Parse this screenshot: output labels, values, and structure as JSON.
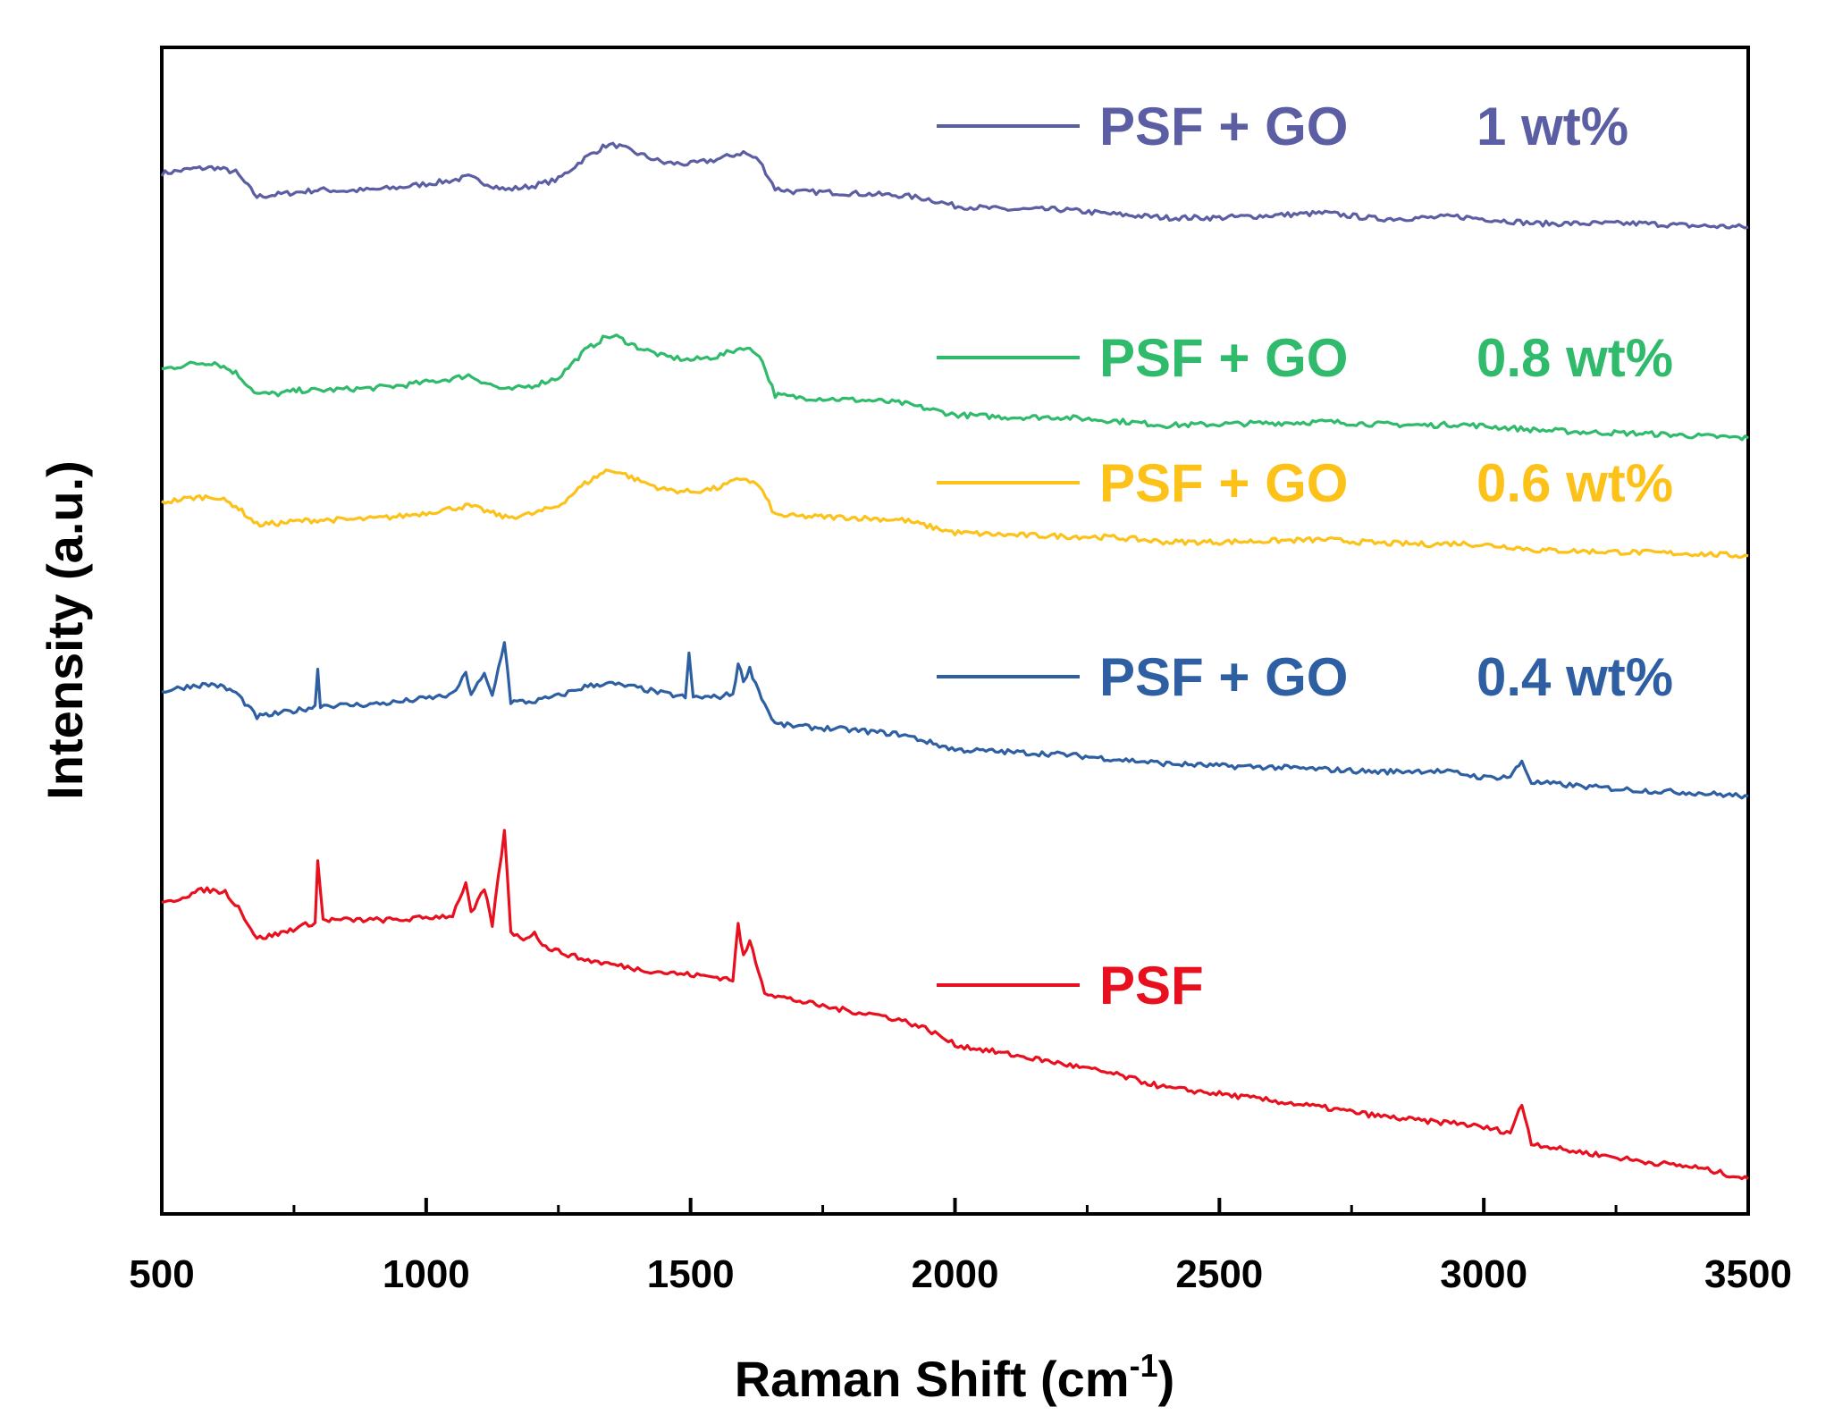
{
  "chart_data": {
    "type": "line",
    "title": "",
    "xlabel": "Raman Shift (cm",
    "xlabel_superscript": "-1",
    "xlabel_suffix": ")",
    "ylabel": "Intensity (a.u.)",
    "xlim": [
      500,
      3500
    ],
    "ylim": [
      0,
      10
    ],
    "x_ticks": [
      500,
      1000,
      1500,
      2000,
      2500,
      3000,
      3500
    ],
    "x_tick_labels": [
      "500",
      "1000",
      "1500",
      "2000",
      "2500",
      "3000",
      "3500"
    ],
    "x_minor_ticks": [
      750,
      1250,
      1750,
      2250,
      2750,
      3250
    ],
    "y_ticks_shown": false,
    "grid": false,
    "legend_position": "right, beside each curve",
    "series": [
      {
        "name": "PSF  + GO    1 wt%",
        "legend_parts": [
          "PSF  + GO",
          "1 wt%"
        ],
        "color": "#5b5ea3",
        "points": [
          [
            500,
            8.92
          ],
          [
            560,
            8.96
          ],
          [
            600,
            8.97
          ],
          [
            640,
            8.93
          ],
          [
            680,
            8.72
          ],
          [
            720,
            8.74
          ],
          [
            760,
            8.76
          ],
          [
            800,
            8.78
          ],
          [
            850,
            8.77
          ],
          [
            900,
            8.78
          ],
          [
            950,
            8.8
          ],
          [
            1000,
            8.83
          ],
          [
            1050,
            8.86
          ],
          [
            1080,
            8.89
          ],
          [
            1110,
            8.84
          ],
          [
            1150,
            8.78
          ],
          [
            1200,
            8.81
          ],
          [
            1250,
            8.87
          ],
          [
            1300,
            9.05
          ],
          [
            1340,
            9.16
          ],
          [
            1360,
            9.16
          ],
          [
            1400,
            9.09
          ],
          [
            1450,
            9.01
          ],
          [
            1500,
            9.0
          ],
          [
            1550,
            9.04
          ],
          [
            1600,
            9.1
          ],
          [
            1630,
            9.03
          ],
          [
            1660,
            8.79
          ],
          [
            1700,
            8.76
          ],
          [
            1750,
            8.76
          ],
          [
            1800,
            8.75
          ],
          [
            1850,
            8.74
          ],
          [
            1900,
            8.73
          ],
          [
            1950,
            8.7
          ],
          [
            2000,
            8.64
          ],
          [
            2100,
            8.61
          ],
          [
            2200,
            8.61
          ],
          [
            2300,
            8.57
          ],
          [
            2400,
            8.54
          ],
          [
            2500,
            8.54
          ],
          [
            2600,
            8.56
          ],
          [
            2700,
            8.58
          ],
          [
            2800,
            8.53
          ],
          [
            2900,
            8.54
          ],
          [
            2950,
            8.55
          ],
          [
            3050,
            8.51
          ],
          [
            3100,
            8.49
          ],
          [
            3200,
            8.49
          ],
          [
            3300,
            8.49
          ],
          [
            3400,
            8.47
          ],
          [
            3500,
            8.46
          ]
        ]
      },
      {
        "name": "PSF  + GO    0.8 wt%",
        "legend_parts": [
          "PSF  + GO",
          "0.8 wt%"
        ],
        "color": "#2fbb6b",
        "points": [
          [
            500,
            7.24
          ],
          [
            560,
            7.29
          ],
          [
            600,
            7.3
          ],
          [
            640,
            7.21
          ],
          [
            680,
            7.03
          ],
          [
            720,
            7.03
          ],
          [
            760,
            7.06
          ],
          [
            800,
            7.06
          ],
          [
            850,
            7.07
          ],
          [
            900,
            7.08
          ],
          [
            950,
            7.1
          ],
          [
            1000,
            7.13
          ],
          [
            1050,
            7.16
          ],
          [
            1080,
            7.19
          ],
          [
            1110,
            7.13
          ],
          [
            1150,
            7.06
          ],
          [
            1200,
            7.1
          ],
          [
            1250,
            7.17
          ],
          [
            1300,
            7.4
          ],
          [
            1340,
            7.52
          ],
          [
            1360,
            7.52
          ],
          [
            1400,
            7.43
          ],
          [
            1450,
            7.35
          ],
          [
            1500,
            7.32
          ],
          [
            1550,
            7.35
          ],
          [
            1600,
            7.43
          ],
          [
            1630,
            7.37
          ],
          [
            1660,
            7.02
          ],
          [
            1700,
            7.0
          ],
          [
            1750,
            6.99
          ],
          [
            1800,
            6.98
          ],
          [
            1850,
            6.97
          ],
          [
            1900,
            6.95
          ],
          [
            2000,
            6.85
          ],
          [
            2100,
            6.83
          ],
          [
            2200,
            6.83
          ],
          [
            2300,
            6.8
          ],
          [
            2400,
            6.76
          ],
          [
            2500,
            6.77
          ],
          [
            2600,
            6.78
          ],
          [
            2700,
            6.79
          ],
          [
            2800,
            6.77
          ],
          [
            2900,
            6.76
          ],
          [
            2950,
            6.77
          ],
          [
            3100,
            6.72
          ],
          [
            3200,
            6.7
          ],
          [
            3300,
            6.69
          ],
          [
            3400,
            6.67
          ],
          [
            3500,
            6.65
          ]
        ]
      },
      {
        "name": "PSF  + GO    0.6 wt%",
        "legend_parts": [
          "PSF  + GO",
          "0.6 wt%"
        ],
        "color": "#fcc21a",
        "points": [
          [
            500,
            6.1
          ],
          [
            560,
            6.14
          ],
          [
            600,
            6.15
          ],
          [
            640,
            6.07
          ],
          [
            680,
            5.91
          ],
          [
            720,
            5.92
          ],
          [
            760,
            5.94
          ],
          [
            800,
            5.95
          ],
          [
            850,
            5.95
          ],
          [
            900,
            5.96
          ],
          [
            950,
            5.98
          ],
          [
            1000,
            6.01
          ],
          [
            1050,
            6.05
          ],
          [
            1080,
            6.07
          ],
          [
            1110,
            6.03
          ],
          [
            1150,
            5.97
          ],
          [
            1200,
            6.0
          ],
          [
            1250,
            6.07
          ],
          [
            1300,
            6.26
          ],
          [
            1340,
            6.37
          ],
          [
            1360,
            6.37
          ],
          [
            1400,
            6.29
          ],
          [
            1450,
            6.21
          ],
          [
            1500,
            6.19
          ],
          [
            1550,
            6.22
          ],
          [
            1600,
            6.31
          ],
          [
            1630,
            6.24
          ],
          [
            1660,
            5.99
          ],
          [
            1700,
            5.98
          ],
          [
            1800,
            5.97
          ],
          [
            1900,
            5.95
          ],
          [
            2000,
            5.84
          ],
          [
            2100,
            5.82
          ],
          [
            2200,
            5.81
          ],
          [
            2300,
            5.8
          ],
          [
            2400,
            5.76
          ],
          [
            2500,
            5.76
          ],
          [
            2600,
            5.77
          ],
          [
            2700,
            5.78
          ],
          [
            2800,
            5.75
          ],
          [
            2900,
            5.74
          ],
          [
            2950,
            5.75
          ],
          [
            3050,
            5.72
          ],
          [
            3100,
            5.69
          ],
          [
            3200,
            5.68
          ],
          [
            3300,
            5.67
          ],
          [
            3400,
            5.66
          ],
          [
            3500,
            5.64
          ]
        ]
      },
      {
        "name": "PSF  + GO    0.4 wt%",
        "legend_parts": [
          "PSF  + GO",
          "0.4 wt%"
        ],
        "color": "#2f5fa3",
        "points": [
          [
            500,
            4.48
          ],
          [
            560,
            4.53
          ],
          [
            600,
            4.54
          ],
          [
            640,
            4.47
          ],
          [
            680,
            4.26
          ],
          [
            720,
            4.29
          ],
          [
            760,
            4.32
          ],
          [
            790,
            4.35
          ],
          [
            795,
            4.68
          ],
          [
            800,
            4.36
          ],
          [
            850,
            4.36
          ],
          [
            900,
            4.37
          ],
          [
            950,
            4.39
          ],
          [
            1000,
            4.42
          ],
          [
            1050,
            4.45
          ],
          [
            1075,
            4.63
          ],
          [
            1085,
            4.46
          ],
          [
            1110,
            4.62
          ],
          [
            1125,
            4.44
          ],
          [
            1148,
            4.91
          ],
          [
            1160,
            4.39
          ],
          [
            1200,
            4.39
          ],
          [
            1250,
            4.44
          ],
          [
            1300,
            4.52
          ],
          [
            1340,
            4.55
          ],
          [
            1400,
            4.51
          ],
          [
            1450,
            4.46
          ],
          [
            1490,
            4.43
          ],
          [
            1497,
            4.79
          ],
          [
            1505,
            4.43
          ],
          [
            1550,
            4.43
          ],
          [
            1580,
            4.46
          ],
          [
            1590,
            4.71
          ],
          [
            1600,
            4.58
          ],
          [
            1612,
            4.67
          ],
          [
            1640,
            4.37
          ],
          [
            1660,
            4.2
          ],
          [
            1700,
            4.18
          ],
          [
            1800,
            4.15
          ],
          [
            1900,
            4.11
          ],
          [
            2000,
            3.98
          ],
          [
            2100,
            3.96
          ],
          [
            2200,
            3.94
          ],
          [
            2300,
            3.9
          ],
          [
            2400,
            3.86
          ],
          [
            2500,
            3.84
          ],
          [
            2600,
            3.83
          ],
          [
            2700,
            3.81
          ],
          [
            2800,
            3.79
          ],
          [
            2900,
            3.8
          ],
          [
            2950,
            3.78
          ],
          [
            3000,
            3.74
          ],
          [
            3050,
            3.75
          ],
          [
            3072,
            3.88
          ],
          [
            3090,
            3.7
          ],
          [
            3150,
            3.68
          ],
          [
            3200,
            3.66
          ],
          [
            3300,
            3.63
          ],
          [
            3400,
            3.61
          ],
          [
            3500,
            3.58
          ]
        ]
      },
      {
        "name": "PSF",
        "legend_parts": [
          "PSF",
          ""
        ],
        "color": "#e8101e",
        "points": [
          [
            500,
            2.65
          ],
          [
            540,
            2.72
          ],
          [
            580,
            2.78
          ],
          [
            620,
            2.76
          ],
          [
            645,
            2.63
          ],
          [
            680,
            2.36
          ],
          [
            720,
            2.4
          ],
          [
            760,
            2.46
          ],
          [
            790,
            2.5
          ],
          [
            795,
            3.02
          ],
          [
            805,
            2.52
          ],
          [
            850,
            2.52
          ],
          [
            900,
            2.52
          ],
          [
            950,
            2.52
          ],
          [
            1000,
            2.54
          ],
          [
            1050,
            2.56
          ],
          [
            1075,
            2.84
          ],
          [
            1085,
            2.57
          ],
          [
            1110,
            2.78
          ],
          [
            1125,
            2.48
          ],
          [
            1148,
            3.28
          ],
          [
            1160,
            2.42
          ],
          [
            1190,
            2.35
          ],
          [
            1205,
            2.43
          ],
          [
            1220,
            2.3
          ],
          [
            1250,
            2.25
          ],
          [
            1300,
            2.18
          ],
          [
            1350,
            2.14
          ],
          [
            1400,
            2.1
          ],
          [
            1450,
            2.07
          ],
          [
            1500,
            2.05
          ],
          [
            1550,
            2.03
          ],
          [
            1580,
            2.01
          ],
          [
            1590,
            2.48
          ],
          [
            1600,
            2.2
          ],
          [
            1612,
            2.34
          ],
          [
            1640,
            1.91
          ],
          [
            1660,
            1.87
          ],
          [
            1700,
            1.83
          ],
          [
            1750,
            1.78
          ],
          [
            1800,
            1.74
          ],
          [
            1850,
            1.71
          ],
          [
            1900,
            1.66
          ],
          [
            1950,
            1.58
          ],
          [
            2000,
            1.45
          ],
          [
            2100,
            1.37
          ],
          [
            2200,
            1.29
          ],
          [
            2300,
            1.2
          ],
          [
            2400,
            1.08
          ],
          [
            2500,
            1.03
          ],
          [
            2600,
            0.97
          ],
          [
            2700,
            0.91
          ],
          [
            2800,
            0.84
          ],
          [
            2900,
            0.79
          ],
          [
            2950,
            0.78
          ],
          [
            3000,
            0.74
          ],
          [
            3050,
            0.7
          ],
          [
            3072,
            0.94
          ],
          [
            3090,
            0.61
          ],
          [
            3150,
            0.55
          ],
          [
            3200,
            0.52
          ],
          [
            3300,
            0.45
          ],
          [
            3400,
            0.4
          ],
          [
            3500,
            0.3
          ]
        ]
      }
    ]
  }
}
